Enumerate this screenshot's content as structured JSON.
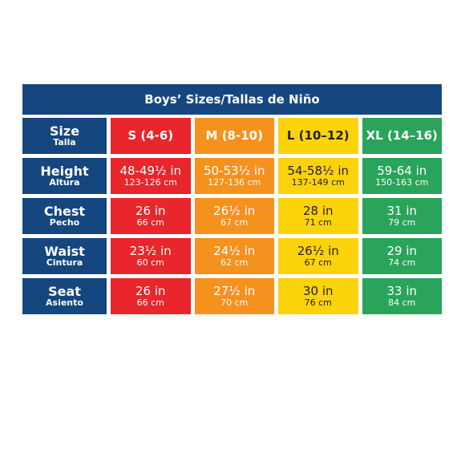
{
  "title": "Boys’ Sizes/Tallas de Niño",
  "header": {
    "label": "Size",
    "sublabel": "Talla",
    "sizes": [
      "S (4-6)",
      "M (8-10)",
      "L (10–12)",
      "XL (14–16)"
    ]
  },
  "rows": [
    {
      "label": "Height",
      "sublabel": "Altura",
      "cells": [
        {
          "main": "48-49½ in",
          "sub": "123-126 cm"
        },
        {
          "main": "50-53½ in",
          "sub": "127-136 cm"
        },
        {
          "main": "54-58½ in",
          "sub": "137-149 cm"
        },
        {
          "main": "59-64 in",
          "sub": "150-163 cm"
        }
      ]
    },
    {
      "label": "Chest",
      "sublabel": "Pecho",
      "cells": [
        {
          "main": "26 in",
          "sub": "66 cm"
        },
        {
          "main": "26½ in",
          "sub": "67 cm"
        },
        {
          "main": "28 in",
          "sub": "71 cm"
        },
        {
          "main": "31 in",
          "sub": "79 cm"
        }
      ]
    },
    {
      "label": "Waist",
      "sublabel": "Cintura",
      "cells": [
        {
          "main": "23½ in",
          "sub": "60 cm"
        },
        {
          "main": "24½ in",
          "sub": "62 cm"
        },
        {
          "main": "26½ in",
          "sub": "67 cm"
        },
        {
          "main": "29 in",
          "sub": "74 cm"
        }
      ]
    },
    {
      "label": "Seat",
      "sublabel": "Asiento",
      "cells": [
        {
          "main": "26 in",
          "sub": "66 cm"
        },
        {
          "main": "27½ in",
          "sub": "70 cm"
        },
        {
          "main": "30 in",
          "sub": "76 cm"
        },
        {
          "main": "33 in",
          "sub": "84 cm"
        }
      ]
    }
  ]
}
